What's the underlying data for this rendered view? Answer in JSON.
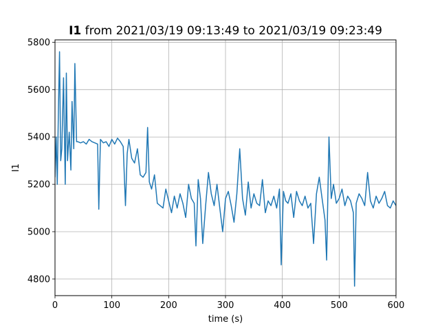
{
  "chart_data": {
    "type": "line",
    "title_bold": "I1",
    "title_rest": " from 2021/03/19 09:13:49 to 2021/03/19 09:23:49",
    "xlabel": "time (s)",
    "ylabel": "I1",
    "xlim": [
      0,
      600
    ],
    "ylim": [
      4730,
      5810
    ],
    "xticks": [
      0,
      100,
      200,
      300,
      400,
      500,
      600
    ],
    "yticks": [
      4800,
      5000,
      5200,
      5400,
      5600,
      5800
    ],
    "grid": true,
    "line_color": "#1f77b4",
    "series": [
      {
        "x": [
          0,
          2,
          4,
          6,
          8,
          10,
          12,
          15,
          18,
          20,
          22,
          25,
          28,
          30,
          33,
          35,
          38,
          40,
          45,
          50,
          55,
          60,
          65,
          70,
          75,
          77,
          80,
          85,
          90,
          95,
          100,
          105,
          110,
          115,
          120,
          124,
          127,
          130,
          135,
          140,
          145,
          150,
          155,
          160,
          163,
          166,
          170,
          175,
          180,
          185,
          190,
          195,
          200,
          205,
          210,
          215,
          220,
          225,
          230,
          235,
          240,
          245,
          248,
          252,
          256,
          260,
          265,
          270,
          275,
          280,
          285,
          290,
          295,
          300,
          305,
          310,
          315,
          320,
          325,
          330,
          335,
          340,
          345,
          350,
          355,
          360,
          365,
          370,
          375,
          380,
          385,
          390,
          395,
          398,
          402,
          406,
          410,
          415,
          420,
          425,
          430,
          435,
          440,
          445,
          450,
          455,
          460,
          465,
          470,
          475,
          478,
          482,
          486,
          490,
          495,
          500,
          505,
          510,
          515,
          520,
          525,
          527,
          530,
          535,
          540,
          545,
          550,
          555,
          560,
          565,
          570,
          575,
          580,
          585,
          590,
          595,
          600
        ],
        "values": [
          5230,
          5400,
          5200,
          5520,
          5760,
          5300,
          5350,
          5650,
          5200,
          5670,
          5300,
          5420,
          5260,
          5550,
          5350,
          5710,
          5380,
          5380,
          5375,
          5380,
          5370,
          5390,
          5380,
          5375,
          5370,
          5095,
          5390,
          5375,
          5380,
          5360,
          5390,
          5370,
          5395,
          5380,
          5360,
          5110,
          5330,
          5390,
          5310,
          5290,
          5350,
          5240,
          5230,
          5250,
          5440,
          5210,
          5180,
          5240,
          5120,
          5110,
          5100,
          5180,
          5130,
          5080,
          5150,
          5100,
          5160,
          5120,
          5060,
          5200,
          5140,
          5120,
          4940,
          5220,
          5140,
          4950,
          5110,
          5250,
          5160,
          5110,
          5200,
          5100,
          5000,
          5140,
          5170,
          5110,
          5040,
          5160,
          5350,
          5140,
          5070,
          5210,
          5100,
          5160,
          5120,
          5110,
          5220,
          5080,
          5130,
          5110,
          5150,
          5100,
          5180,
          4860,
          5170,
          5130,
          5120,
          5160,
          5060,
          5170,
          5130,
          5110,
          5150,
          5100,
          5120,
          4950,
          5160,
          5230,
          5140,
          5050,
          4880,
          5400,
          5140,
          5200,
          5120,
          5140,
          5180,
          5110,
          5150,
          5130,
          5080,
          4770,
          5120,
          5160,
          5140,
          5110,
          5250,
          5130,
          5100,
          5150,
          5120,
          5140,
          5170,
          5110,
          5100,
          5130,
          5110
        ]
      }
    ]
  }
}
